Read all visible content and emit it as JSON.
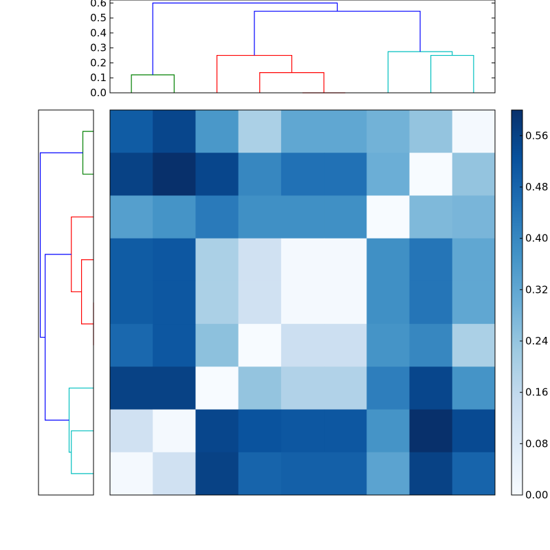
{
  "chart_data": [
    {
      "type": "dendrogram",
      "orientation": "top",
      "leaves": 9,
      "ylim": [
        0,
        0.62
      ],
      "ytick_labels": [
        "0.0",
        "0.1",
        "0.2",
        "0.3",
        "0.4",
        "0.5",
        "0.6"
      ],
      "yticks": [
        0,
        0.1,
        0.2,
        0.3,
        0.4,
        0.5,
        0.6
      ],
      "links": [
        {
          "left_x": 1.0,
          "left_y": 0.0,
          "right_x": 2.0,
          "right_y": 0.0,
          "height": 0.12,
          "color": "#008000"
        },
        {
          "left_x": 5.0,
          "left_y": 0.0,
          "right_x": 6.0,
          "right_y": 0.0,
          "height": 0.0,
          "color": "#ff0000"
        },
        {
          "left_x": 4.0,
          "left_y": 0.0,
          "right_x": 5.5,
          "right_y": 0.0,
          "height": 0.135,
          "color": "#ff0000"
        },
        {
          "left_x": 3.0,
          "left_y": 0.0,
          "right_x": 4.75,
          "right_y": 0.135,
          "height": 0.25,
          "color": "#ff0000"
        },
        {
          "left_x": 8.0,
          "left_y": 0.0,
          "right_x": 9.0,
          "right_y": 0.0,
          "height": 0.25,
          "color": "#00bfbf"
        },
        {
          "left_x": 7.0,
          "left_y": 0.0,
          "right_x": 8.5,
          "right_y": 0.25,
          "height": 0.275,
          "color": "#00bfbf"
        },
        {
          "left_x": 3.875,
          "left_y": 0.25,
          "right_x": 7.75,
          "right_y": 0.275,
          "height": 0.545,
          "color": "#0000ff"
        },
        {
          "left_x": 1.5,
          "left_y": 0.12,
          "right_x": 5.8125,
          "right_y": 0.545,
          "height": 0.6,
          "color": "#0000ff"
        }
      ]
    },
    {
      "type": "dendrogram",
      "orientation": "left",
      "leaves": 9,
      "links": [
        {
          "left_x": 1.0,
          "left_y": 0.0,
          "right_x": 2.0,
          "right_y": 0.0,
          "height": 0.12,
          "color": "#008000"
        },
        {
          "left_x": 3.0,
          "left_y": 0.0,
          "right_x": 4.75,
          "right_y": 0.135,
          "height": 0.25,
          "color": "#ff0000"
        },
        {
          "left_x": 4.0,
          "left_y": 0.0,
          "right_x": 5.5,
          "right_y": 0.0,
          "height": 0.135,
          "color": "#ff0000"
        },
        {
          "left_x": 5.0,
          "left_y": 0.0,
          "right_x": 6.0,
          "right_y": 0.0,
          "height": 0.0,
          "color": "#ff0000"
        },
        {
          "left_x": 7.0,
          "left_y": 0.0,
          "right_x": 8.5,
          "right_y": 0.25,
          "height": 0.275,
          "color": "#00bfbf"
        },
        {
          "left_x": 8.0,
          "left_y": 0.0,
          "right_x": 9.0,
          "right_y": 0.0,
          "height": 0.25,
          "color": "#00bfbf"
        },
        {
          "left_x": 3.875,
          "left_y": 0.25,
          "right_x": 7.75,
          "right_y": 0.275,
          "height": 0.545,
          "color": "#0000ff"
        },
        {
          "left_x": 1.5,
          "left_y": 0.12,
          "right_x": 5.8125,
          "right_y": 0.545,
          "height": 0.6,
          "color": "#0000ff"
        }
      ]
    },
    {
      "type": "heatmap",
      "colormap": "Blues",
      "vmin": 0.0,
      "vmax": 0.6,
      "colorbar_ticks": [
        0.0,
        0.08,
        0.16,
        0.24,
        0.32,
        0.4,
        0.48,
        0.56
      ],
      "colorbar_tick_labels": [
        "0.00",
        "0.08",
        "0.16",
        "0.24",
        "0.32",
        "0.40",
        "0.48",
        "0.56"
      ],
      "values": [
        [
          0.5,
          0.55,
          0.36,
          0.2,
          0.32,
          0.32,
          0.29,
          0.24,
          0.01
        ],
        [
          0.56,
          0.6,
          0.55,
          0.4,
          0.45,
          0.45,
          0.3,
          0.0,
          0.24
        ],
        [
          0.34,
          0.37,
          0.43,
          0.38,
          0.38,
          0.38,
          0.0,
          0.27,
          0.28
        ],
        [
          0.5,
          0.51,
          0.2,
          0.12,
          0.01,
          0.01,
          0.38,
          0.44,
          0.32
        ],
        [
          0.5,
          0.51,
          0.2,
          0.12,
          0.01,
          0.01,
          0.38,
          0.44,
          0.32
        ],
        [
          0.47,
          0.51,
          0.25,
          0.0,
          0.13,
          0.13,
          0.37,
          0.4,
          0.2
        ],
        [
          0.56,
          0.56,
          0.0,
          0.24,
          0.19,
          0.19,
          0.42,
          0.55,
          0.37
        ],
        [
          0.12,
          0.01,
          0.55,
          0.52,
          0.51,
          0.51,
          0.37,
          0.6,
          0.54
        ],
        [
          0.01,
          0.12,
          0.56,
          0.48,
          0.49,
          0.49,
          0.33,
          0.56,
          0.48
        ]
      ]
    }
  ]
}
